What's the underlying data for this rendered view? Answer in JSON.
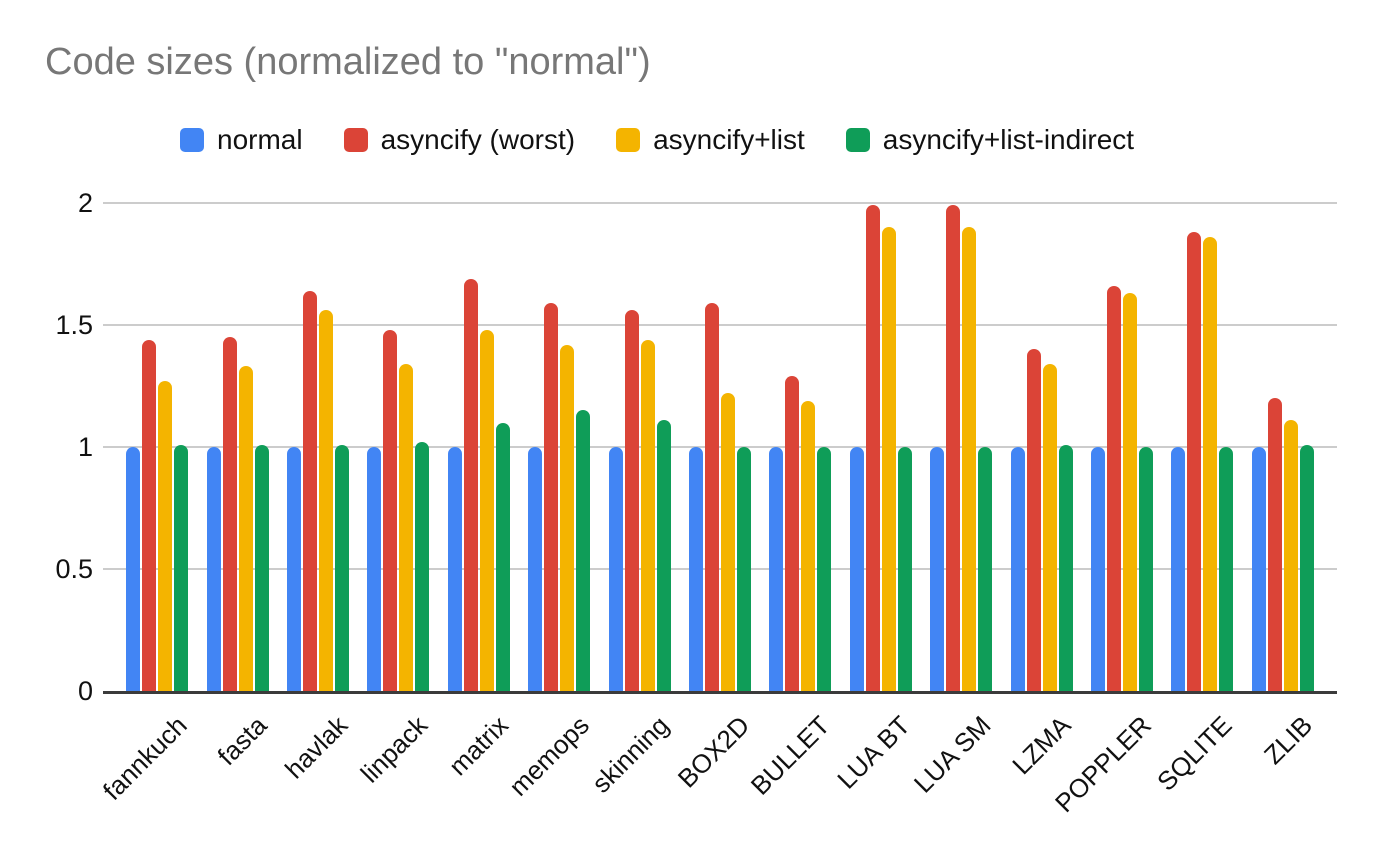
{
  "title": "Code sizes (normalized to \"normal\")",
  "colors": {
    "title_text": "#777777",
    "axis_line": "#3b3b3b",
    "gridline": "#cccccc",
    "tick_text": "#111111",
    "background": "#ffffff"
  },
  "chart_data": {
    "type": "bar",
    "title": "Code sizes (normalized to \"normal\")",
    "xlabel": "",
    "ylabel": "",
    "categories": [
      "fannkuch",
      "fasta",
      "havlak",
      "linpack",
      "matrix",
      "memops",
      "skinning",
      "BOX2D",
      "BULLET",
      "LUA BT",
      "LUA SM",
      "LZMA",
      "POPPLER",
      "SQLITE",
      "ZLIB"
    ],
    "series": [
      {
        "name": "normal",
        "color": "#4285F4",
        "values": [
          1.0,
          1.0,
          1.0,
          1.0,
          1.0,
          1.0,
          1.0,
          1.0,
          1.0,
          1.0,
          1.0,
          1.0,
          1.0,
          1.0,
          1.0
        ]
      },
      {
        "name": "asyncify (worst)",
        "color": "#DB4437",
        "values": [
          1.44,
          1.45,
          1.64,
          1.48,
          1.69,
          1.59,
          1.56,
          1.59,
          1.29,
          1.99,
          1.99,
          1.4,
          1.66,
          1.88,
          1.2
        ]
      },
      {
        "name": "asyncify+list",
        "color": "#F4B400",
        "values": [
          1.27,
          1.33,
          1.56,
          1.34,
          1.48,
          1.42,
          1.44,
          1.22,
          1.19,
          1.9,
          1.9,
          1.34,
          1.63,
          1.86,
          1.11
        ]
      },
      {
        "name": "asyncify+list-indirect",
        "color": "#0F9D58",
        "values": [
          1.01,
          1.01,
          1.01,
          1.02,
          1.1,
          1.15,
          1.11,
          1.0,
          1.0,
          1.0,
          1.0,
          1.01,
          1.0,
          1.0,
          1.01
        ]
      }
    ],
    "y_ticks": [
      0,
      0.5,
      1,
      1.5,
      2
    ],
    "ylim": [
      0,
      2
    ],
    "grid": true,
    "legend_position": "top",
    "x_tick_rotation": 45
  }
}
